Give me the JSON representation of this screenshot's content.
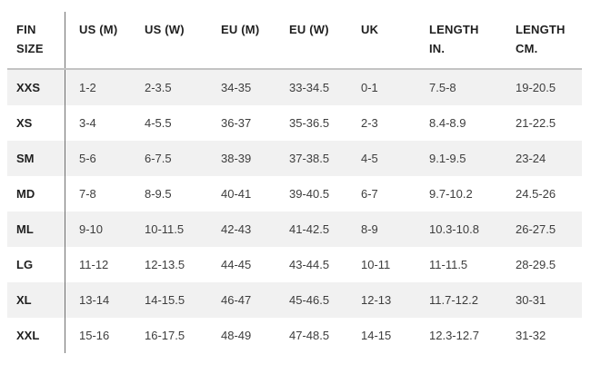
{
  "colors": {
    "row_alt_background": "#f1f1f1",
    "header_border": "#c3c3c3",
    "column_divider": "#6f6f6f",
    "header_text": "#1f1f1f",
    "cell_text": "#3d3d3d"
  },
  "chart_data": {
    "type": "table",
    "columns": [
      "FIN SIZE",
      "US (M)",
      "US (W)",
      "EU (M)",
      "EU (W)",
      "UK",
      "LENGTH IN.",
      "LENGTH CM."
    ],
    "rows": [
      [
        "XXS",
        "1-2",
        "2-3.5",
        "34-35",
        "33-34.5",
        "0-1",
        "7.5-8",
        "19-20.5"
      ],
      [
        "XS",
        "3-4",
        "4-5.5",
        "36-37",
        "35-36.5",
        "2-3",
        "8.4-8.9",
        "21-22.5"
      ],
      [
        "SM",
        "5-6",
        "6-7.5",
        "38-39",
        "37-38.5",
        "4-5",
        "9.1-9.5",
        "23-24"
      ],
      [
        "MD",
        "7-8",
        "8-9.5",
        "40-41",
        "39-40.5",
        "6-7",
        "9.7-10.2",
        "24.5-26"
      ],
      [
        "ML",
        "9-10",
        "10-11.5",
        "42-43",
        "41-42.5",
        "8-9",
        "10.3-10.8",
        "26-27.5"
      ],
      [
        "LG",
        "11-12",
        "12-13.5",
        "44-45",
        "43-44.5",
        "10-11",
        "11-11.5",
        "28-29.5"
      ],
      [
        "XL",
        "13-14",
        "14-15.5",
        "46-47",
        "45-46.5",
        "12-13",
        "11.7-12.2",
        "30-31"
      ],
      [
        "XXL",
        "15-16",
        "16-17.5",
        "48-49",
        "47-48.5",
        "14-15",
        "12.3-12.7",
        "31-32"
      ]
    ]
  }
}
